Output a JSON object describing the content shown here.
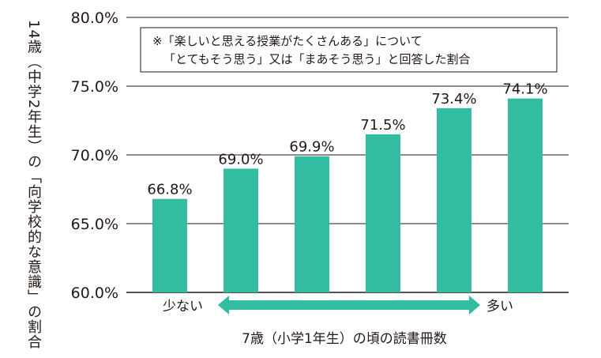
{
  "chart_data": {
    "type": "bar",
    "categories": [
      "",
      "",
      "",
      "",
      "",
      ""
    ],
    "values": [
      66.8,
      69.0,
      69.9,
      71.5,
      73.4,
      74.1
    ],
    "value_labels": [
      "66.8%",
      "69.0%",
      "69.9%",
      "71.5%",
      "73.4%",
      "74.1%"
    ],
    "ylim": [
      60,
      80
    ],
    "yticks": [
      "60.0%",
      "65.0%",
      "70.0%",
      "75.0%",
      "80.0%"
    ],
    "ylabel": "14歳（中学2年生）の「向学校的な意識」の割合",
    "xlabel": "7歳（小学1年生）の頃の読書冊数",
    "x_left_label": "少ない",
    "x_right_label": "多い",
    "note_lines": [
      "※「楽しいと思える授業がたくさんある」について",
      "「とてもそう思う」又は「まあそう思う」と回答した割合"
    ],
    "grid": true,
    "colors": {
      "bar": "#33bda0",
      "arrow": "#33bda0",
      "grid": "#231815"
    }
  }
}
